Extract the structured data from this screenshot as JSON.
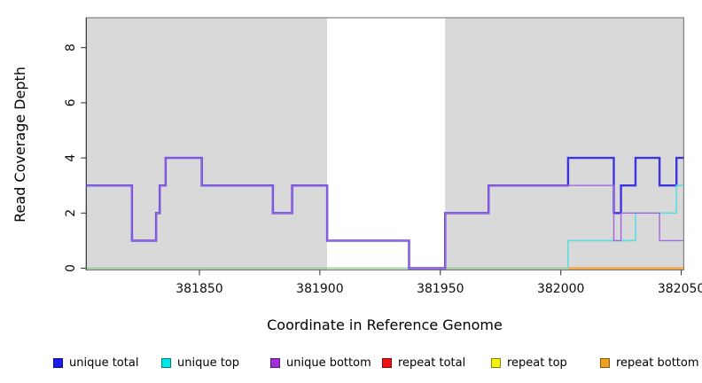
{
  "chart_data": {
    "type": "line",
    "subtype": "step-coverage-plot",
    "title": "",
    "xlabel": "Coordinate in Reference Genome",
    "ylabel": "Read Coverage Depth",
    "xlim": [
      381803,
      382051
    ],
    "ylim": [
      0,
      9.1
    ],
    "grid": "off",
    "x_ticks": [
      381850,
      381900,
      381950,
      382000,
      382050
    ],
    "x_tick_labels": [
      "381850",
      "381900",
      "381950",
      "382000",
      "382050"
    ],
    "y_ticks": [
      0,
      2,
      4,
      6,
      8
    ],
    "y_tick_labels": [
      "0",
      "2",
      "4",
      "6",
      "8"
    ],
    "background_regions": [
      {
        "name": "covered-region-left",
        "x": [
          381803,
          381903
        ],
        "color": "#d9d9d9"
      },
      {
        "name": "alignment-gap-region",
        "x": [
          381903,
          381952
        ],
        "color": "#ffffff"
      },
      {
        "name": "covered-region-right",
        "x": [
          381952,
          382051
        ],
        "color": "#d9d9d9"
      }
    ],
    "series": [
      {
        "name": "unique total",
        "color": "#2a23dd",
        "segments": [
          [
            381803,
            381822,
            3
          ],
          [
            381822,
            381832,
            1
          ],
          [
            381832,
            381833.5,
            2
          ],
          [
            381833.5,
            381836,
            3
          ],
          [
            381836,
            381851,
            4
          ],
          [
            381851,
            381880.5,
            3
          ],
          [
            381880.5,
            381888.5,
            2
          ],
          [
            381888.5,
            381903,
            3
          ],
          [
            381903,
            381937,
            1
          ],
          [
            381937,
            381952,
            0
          ],
          [
            381952,
            381970,
            2
          ],
          [
            381970,
            382003,
            3
          ],
          [
            382003,
            382022,
            4
          ],
          [
            382022,
            382025,
            2
          ],
          [
            382025,
            382031,
            3
          ],
          [
            382031,
            382041,
            4
          ],
          [
            382041,
            382048,
            3
          ],
          [
            382048,
            382051,
            4
          ]
        ]
      },
      {
        "name": "unique top",
        "color": "#00e6e6",
        "segments": [
          [
            381803,
            382003,
            0
          ],
          [
            382003,
            382031,
            1
          ],
          [
            382031,
            382048,
            2
          ],
          [
            382048,
            382051,
            3
          ]
        ]
      },
      {
        "name": "unique bottom",
        "color": "#a22ddb",
        "segments": [
          [
            381803,
            381822,
            3
          ],
          [
            381822,
            381832,
            1
          ],
          [
            381832,
            381833.5,
            2
          ],
          [
            381833.5,
            381836,
            3
          ],
          [
            381836,
            381851,
            4
          ],
          [
            381851,
            381880.5,
            3
          ],
          [
            381880.5,
            381888.5,
            2
          ],
          [
            381888.5,
            381903,
            3
          ],
          [
            381903,
            381937,
            1
          ],
          [
            381937,
            381952,
            0
          ],
          [
            381952,
            381970,
            2
          ],
          [
            381970,
            382022,
            3
          ],
          [
            382022,
            382025,
            1
          ],
          [
            382025,
            382041,
            2
          ],
          [
            382041,
            382051,
            1
          ]
        ]
      },
      {
        "name": "repeat total",
        "color": "#ee1111",
        "segments": [
          [
            381803,
            382051,
            0
          ]
        ]
      },
      {
        "name": "repeat top",
        "color": "#f2f20c",
        "segments": [
          [
            381803,
            382051,
            0
          ]
        ]
      },
      {
        "name": "repeat bottom",
        "color": "#f0a020",
        "segments": [
          [
            381803,
            382051,
            0
          ]
        ]
      }
    ],
    "render_layers": [
      {
        "name": "baseline-overlap-line",
        "color": "#8ccc8c",
        "width": 1.6,
        "segments": [
          [
            381803,
            382003,
            0
          ]
        ]
      },
      {
        "name": "repeat-bottom-line",
        "color": "#ff9b1c",
        "width": 2.0,
        "segments": [
          [
            382003,
            382051,
            0
          ]
        ]
      },
      {
        "name": "unique-total-line",
        "color": "#3c34e0",
        "width": 2.4,
        "segments": [
          [
            381803,
            381822,
            3
          ],
          [
            381822,
            381832,
            1
          ],
          [
            381832,
            381833.5,
            2
          ],
          [
            381833.5,
            381836,
            3
          ],
          [
            381836,
            381851,
            4
          ],
          [
            381851,
            381880.5,
            3
          ],
          [
            381880.5,
            381888.5,
            2
          ],
          [
            381888.5,
            381903,
            3
          ],
          [
            381903,
            381937,
            1
          ],
          [
            381937,
            381952,
            0
          ],
          [
            381952,
            381970,
            2
          ],
          [
            381970,
            382003,
            3
          ],
          [
            382003,
            382022,
            4
          ],
          [
            382022,
            382025,
            2
          ],
          [
            382025,
            382031,
            3
          ],
          [
            382031,
            382041,
            4
          ],
          [
            382041,
            382048,
            3
          ],
          [
            382048,
            382051,
            4
          ]
        ]
      },
      {
        "name": "unique-top-line",
        "color": "#5adde0",
        "width": 1.6,
        "segments": [
          [
            382003,
            382003,
            0
          ],
          [
            382003,
            382031,
            1
          ],
          [
            382031,
            382048,
            2
          ],
          [
            382048,
            382051,
            3
          ]
        ]
      },
      {
        "name": "unique-bottom-line",
        "color": "#a266dc",
        "width": 1.4,
        "segments": [
          [
            381803,
            381822,
            3
          ],
          [
            381822,
            381832,
            1
          ],
          [
            381832,
            381833.5,
            2
          ],
          [
            381833.5,
            381836,
            3
          ],
          [
            381836,
            381851,
            4
          ],
          [
            381851,
            381880.5,
            3
          ],
          [
            381880.5,
            381888.5,
            2
          ],
          [
            381888.5,
            381903,
            3
          ],
          [
            381903,
            381937,
            1
          ],
          [
            381937,
            381952,
            0
          ],
          [
            381952,
            381970,
            2
          ],
          [
            381970,
            382022,
            3
          ],
          [
            382022,
            382025,
            1
          ],
          [
            382025,
            382041,
            2
          ],
          [
            382041,
            382051,
            1
          ]
        ]
      }
    ]
  },
  "legend": {
    "items": [
      {
        "label": "unique total",
        "color": "#1c1cee"
      },
      {
        "label": "unique top",
        "color": "#00e6e6"
      },
      {
        "label": "unique bottom",
        "color": "#a22ddb"
      },
      {
        "label": "repeat total",
        "color": "#ee1111"
      },
      {
        "label": "repeat top",
        "color": "#f2f20c"
      },
      {
        "label": "repeat bottom",
        "color": "#f0a020"
      }
    ]
  }
}
